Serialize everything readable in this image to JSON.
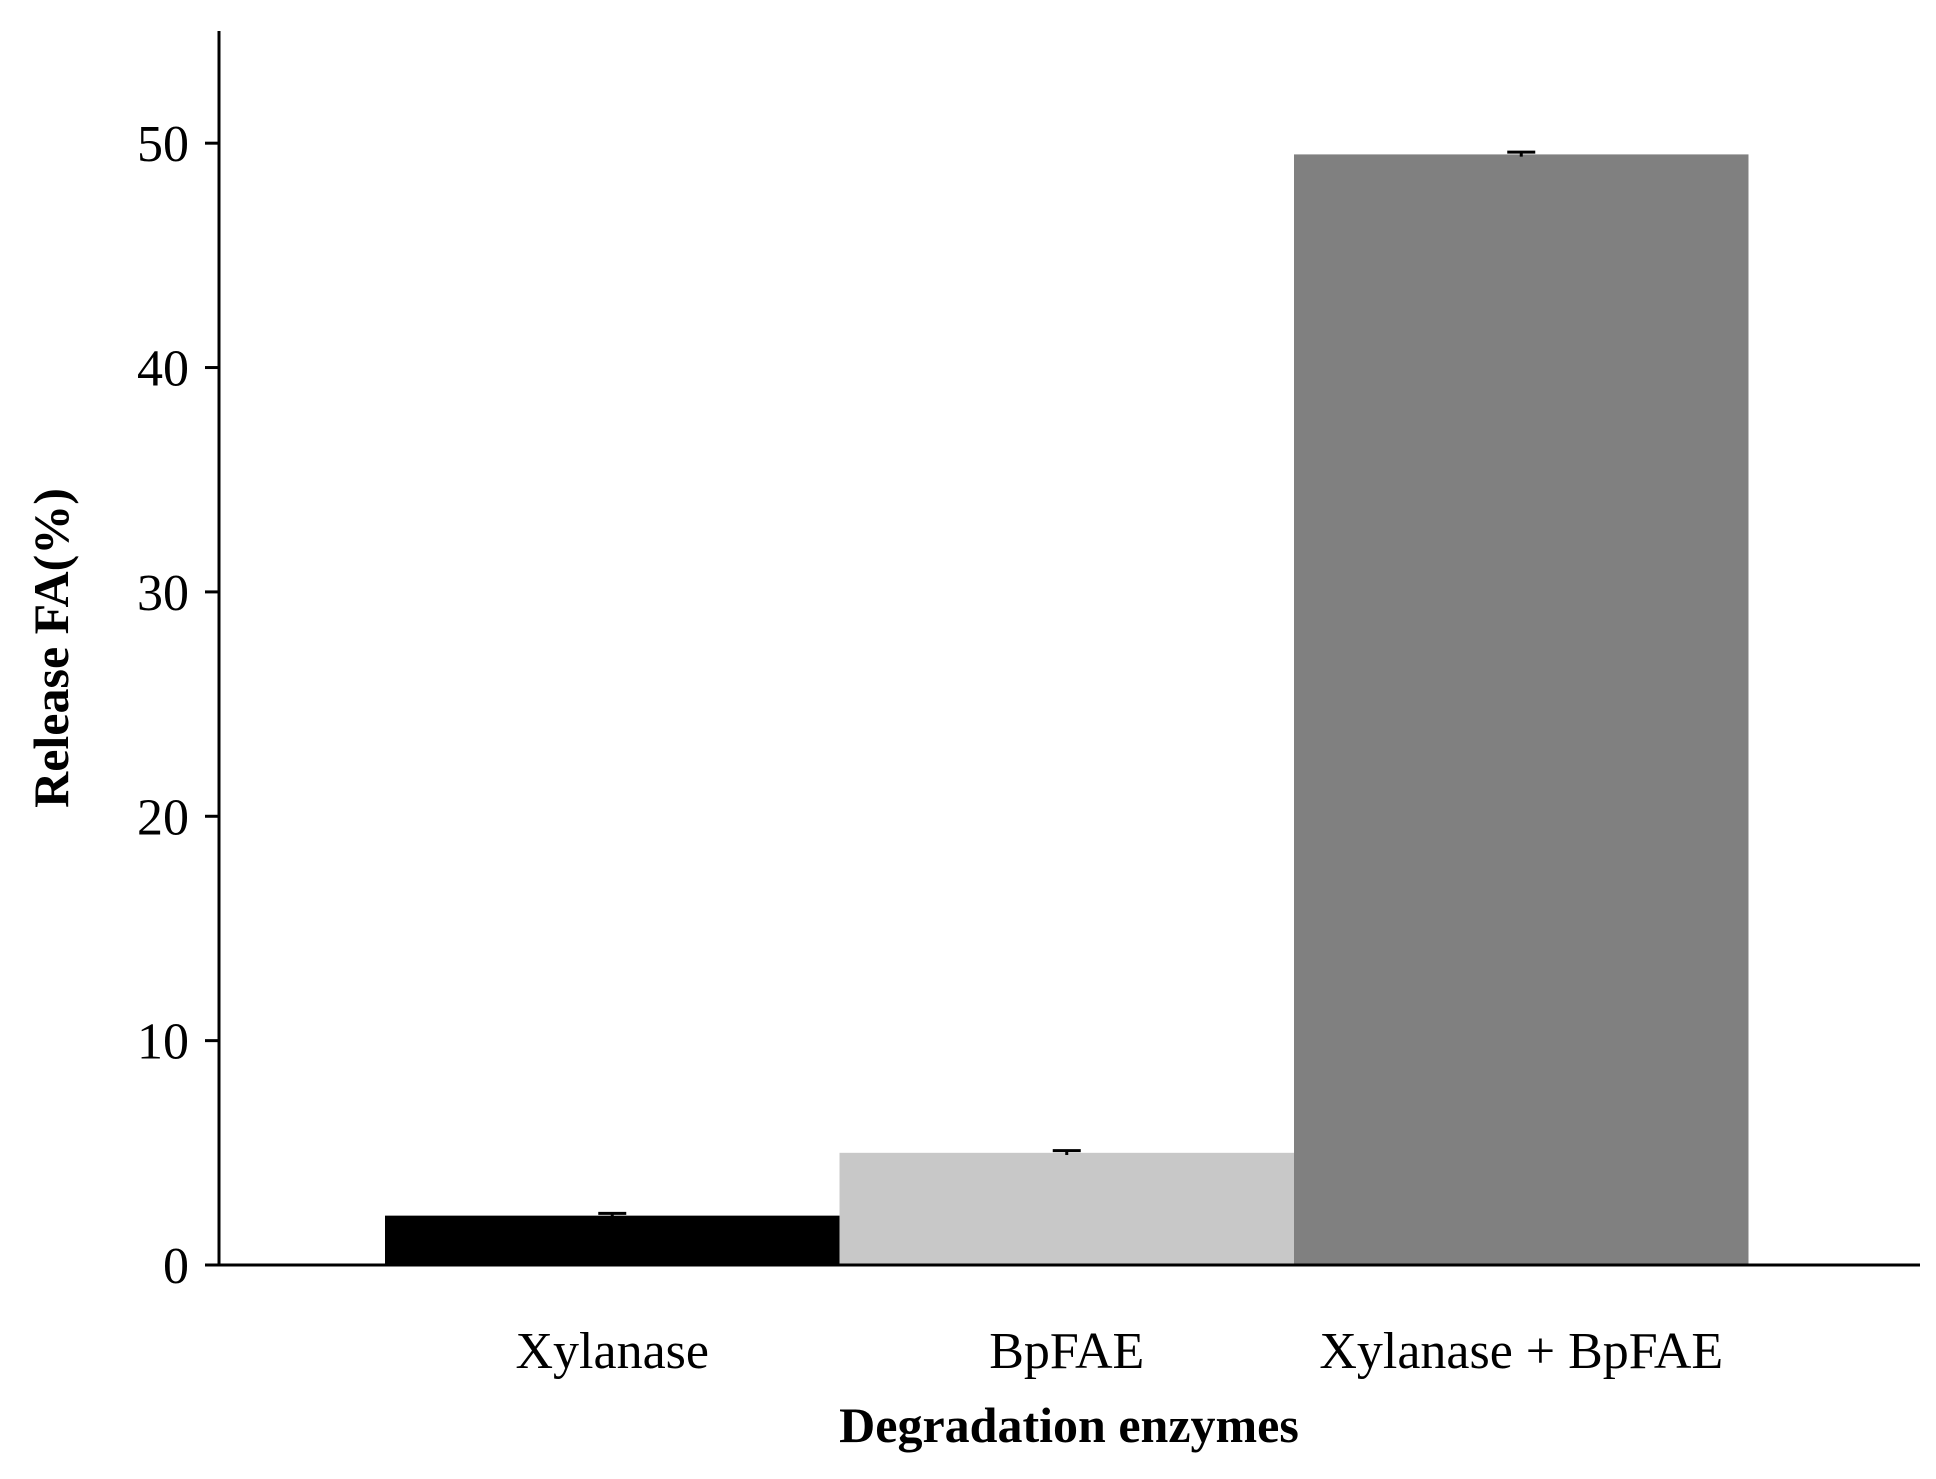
{
  "chart_data": {
    "type": "bar",
    "x_label": "Degradation enzymes",
    "y_label": "Release FA(%)",
    "categories": [
      "Xylanase",
      "BpFAE",
      "Xylanase + BpFAE"
    ],
    "values": [
      2.2,
      5.0,
      49.5
    ],
    "errors": [
      0.1,
      0.1,
      0.1
    ],
    "colors": [
      "#000000",
      "#c8c8c8",
      "#808080"
    ],
    "ylim": [
      0,
      55
    ],
    "yticks": [
      0,
      10,
      20,
      30,
      40,
      50
    ],
    "grid": false
  }
}
